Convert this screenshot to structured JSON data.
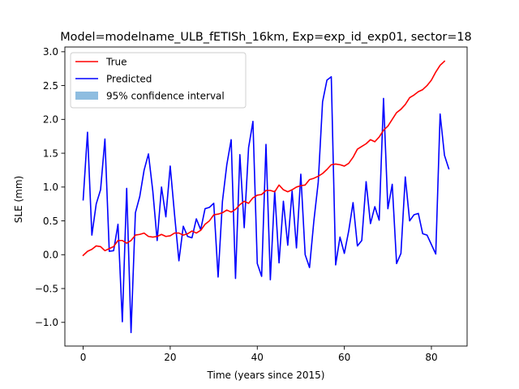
{
  "chart_data": {
    "type": "line",
    "title": "Model=modelname_ULB_fETISh_16km, Exp=exp_id_exp01, sector=18",
    "xlabel": "Time (years since 2015)",
    "ylabel": "SLE (mm)",
    "xlim": [
      -4.2,
      88.2
    ],
    "ylim": [
      -1.35,
      3.07
    ],
    "xticks": [
      0,
      20,
      40,
      60,
      80
    ],
    "yticks": [
      -1.0,
      -0.5,
      0.0,
      0.5,
      1.0,
      1.5,
      2.0,
      2.5,
      3.0
    ],
    "ytick_labels": [
      "−1.0",
      "−0.5",
      "0.0",
      "0.5",
      "1.0",
      "1.5",
      "2.0",
      "2.5",
      "3.0"
    ],
    "grid": false,
    "legend_position": "top-left",
    "x": [
      0,
      1,
      2,
      3,
      4,
      5,
      6,
      7,
      8,
      9,
      10,
      11,
      12,
      13,
      14,
      15,
      16,
      17,
      18,
      19,
      20,
      21,
      22,
      23,
      24,
      25,
      26,
      27,
      28,
      29,
      30,
      31,
      32,
      33,
      34,
      35,
      36,
      37,
      38,
      39,
      40,
      41,
      42,
      43,
      44,
      45,
      46,
      47,
      48,
      49,
      50,
      51,
      52,
      53,
      54,
      55,
      56,
      57,
      58,
      59,
      60,
      61,
      62,
      63,
      64,
      65,
      66,
      67,
      68,
      69,
      70,
      71,
      72,
      73,
      74,
      75,
      76,
      77,
      78,
      79,
      80,
      81,
      82,
      83,
      84
    ],
    "series": [
      {
        "name": "True",
        "color": "#ff0000",
        "values": [
          -0.01,
          0.05,
          0.08,
          0.13,
          0.12,
          0.06,
          0.09,
          0.12,
          0.21,
          0.21,
          0.17,
          0.21,
          0.29,
          0.3,
          0.32,
          0.27,
          0.26,
          0.27,
          0.3,
          0.27,
          0.28,
          0.32,
          0.32,
          0.29,
          0.31,
          0.35,
          0.32,
          0.36,
          0.45,
          0.5,
          0.59,
          0.6,
          0.62,
          0.66,
          0.63,
          0.67,
          0.74,
          0.79,
          0.76,
          0.84,
          0.88,
          0.89,
          0.95,
          0.95,
          0.93,
          1.03,
          0.96,
          0.93,
          0.96,
          1.0,
          1.02,
          1.03,
          1.11,
          1.13,
          1.16,
          1.2,
          1.26,
          1.33,
          1.34,
          1.33,
          1.31,
          1.35,
          1.44,
          1.56,
          1.6,
          1.64,
          1.7,
          1.67,
          1.74,
          1.84,
          1.9,
          2.0,
          2.1,
          2.15,
          2.22,
          2.32,
          2.36,
          2.41,
          2.44,
          2.5,
          2.58,
          2.7,
          2.8,
          2.86,
          null
        ],
        "line_style": "solid"
      },
      {
        "name": "Predicted",
        "color": "#0000ff",
        "values": [
          0.81,
          1.81,
          0.29,
          0.75,
          0.96,
          1.71,
          0.05,
          0.06,
          0.45,
          -0.99,
          0.98,
          -1.15,
          0.62,
          0.86,
          1.25,
          1.49,
          0.94,
          0.21,
          1.0,
          0.56,
          1.31,
          0.59,
          -0.09,
          0.42,
          0.27,
          0.25,
          0.53,
          0.37,
          0.68,
          0.7,
          0.76,
          -0.33,
          0.79,
          1.33,
          1.7,
          -0.35,
          1.48,
          0.4,
          1.58,
          1.97,
          -0.13,
          -0.32,
          1.63,
          -0.37,
          0.94,
          -0.12,
          0.79,
          0.14,
          0.94,
          0.1,
          1.19,
          0.0,
          -0.19,
          0.5,
          1.07,
          2.26,
          2.58,
          2.63,
          -0.15,
          0.26,
          0.02,
          0.35,
          0.77,
          0.13,
          0.21,
          1.08,
          0.46,
          0.71,
          0.51,
          2.31,
          0.68,
          1.04,
          -0.13,
          0.02,
          1.15,
          0.5,
          0.59,
          0.61,
          0.31,
          0.29,
          0.15,
          0.01,
          2.08,
          1.47,
          1.27
        ],
        "line_style": "solid"
      }
    ],
    "legend": [
      {
        "label": "True",
        "kind": "line",
        "color": "#ff0000"
      },
      {
        "label": "Predicted",
        "kind": "line",
        "color": "#0000ff"
      },
      {
        "label": "95% confidence interval",
        "kind": "patch",
        "color": "#8ebde0"
      }
    ]
  }
}
